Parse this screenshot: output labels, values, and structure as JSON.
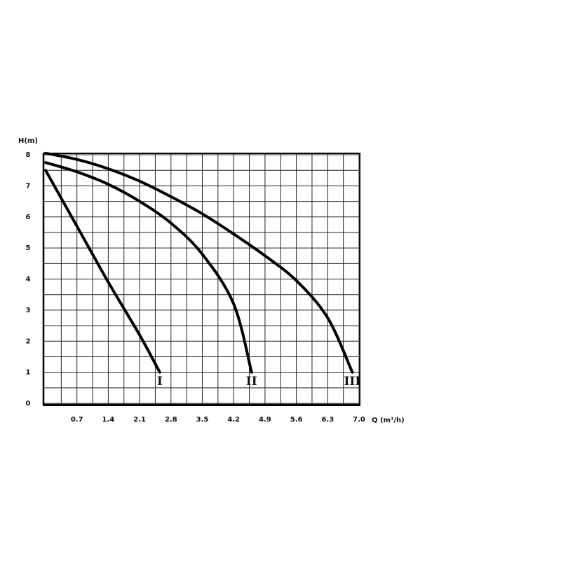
{
  "chart_data": {
    "type": "line",
    "y_label": "H(m)",
    "x_label": "Q (m³/h)",
    "xlim": [
      0,
      7.0
    ],
    "ylim": [
      0,
      8
    ],
    "xticks": [
      0.7,
      1.4,
      2.1,
      2.8,
      3.5,
      4.2,
      4.9,
      5.6,
      6.3,
      {
        "value": 7.0,
        "label": "7.0"
      }
    ],
    "yticks": [
      0,
      1,
      2,
      3,
      4,
      5,
      6,
      7,
      8
    ],
    "grid": true,
    "series": [
      {
        "name": "I",
        "color": "#000000",
        "x": [
          0,
          0.7,
          1.4,
          2.1,
          2.55
        ],
        "values": [
          7.5,
          5.7,
          3.9,
          2.2,
          1.0
        ]
      },
      {
        "name": "II",
        "color": "#000000",
        "x": [
          0,
          0.7,
          1.4,
          2.1,
          2.8,
          3.5,
          4.2,
          4.6
        ],
        "values": [
          7.75,
          7.45,
          7.05,
          6.5,
          5.8,
          4.8,
          3.2,
          1.0
        ]
      },
      {
        "name": "III",
        "color": "#000000",
        "x": [
          0,
          0.7,
          1.4,
          2.1,
          2.8,
          3.5,
          4.2,
          4.9,
          5.6,
          6.3,
          6.85
        ],
        "values": [
          8.05,
          7.85,
          7.55,
          7.15,
          6.65,
          6.1,
          5.45,
          4.75,
          3.95,
          2.75,
          1.0
        ]
      }
    ]
  }
}
